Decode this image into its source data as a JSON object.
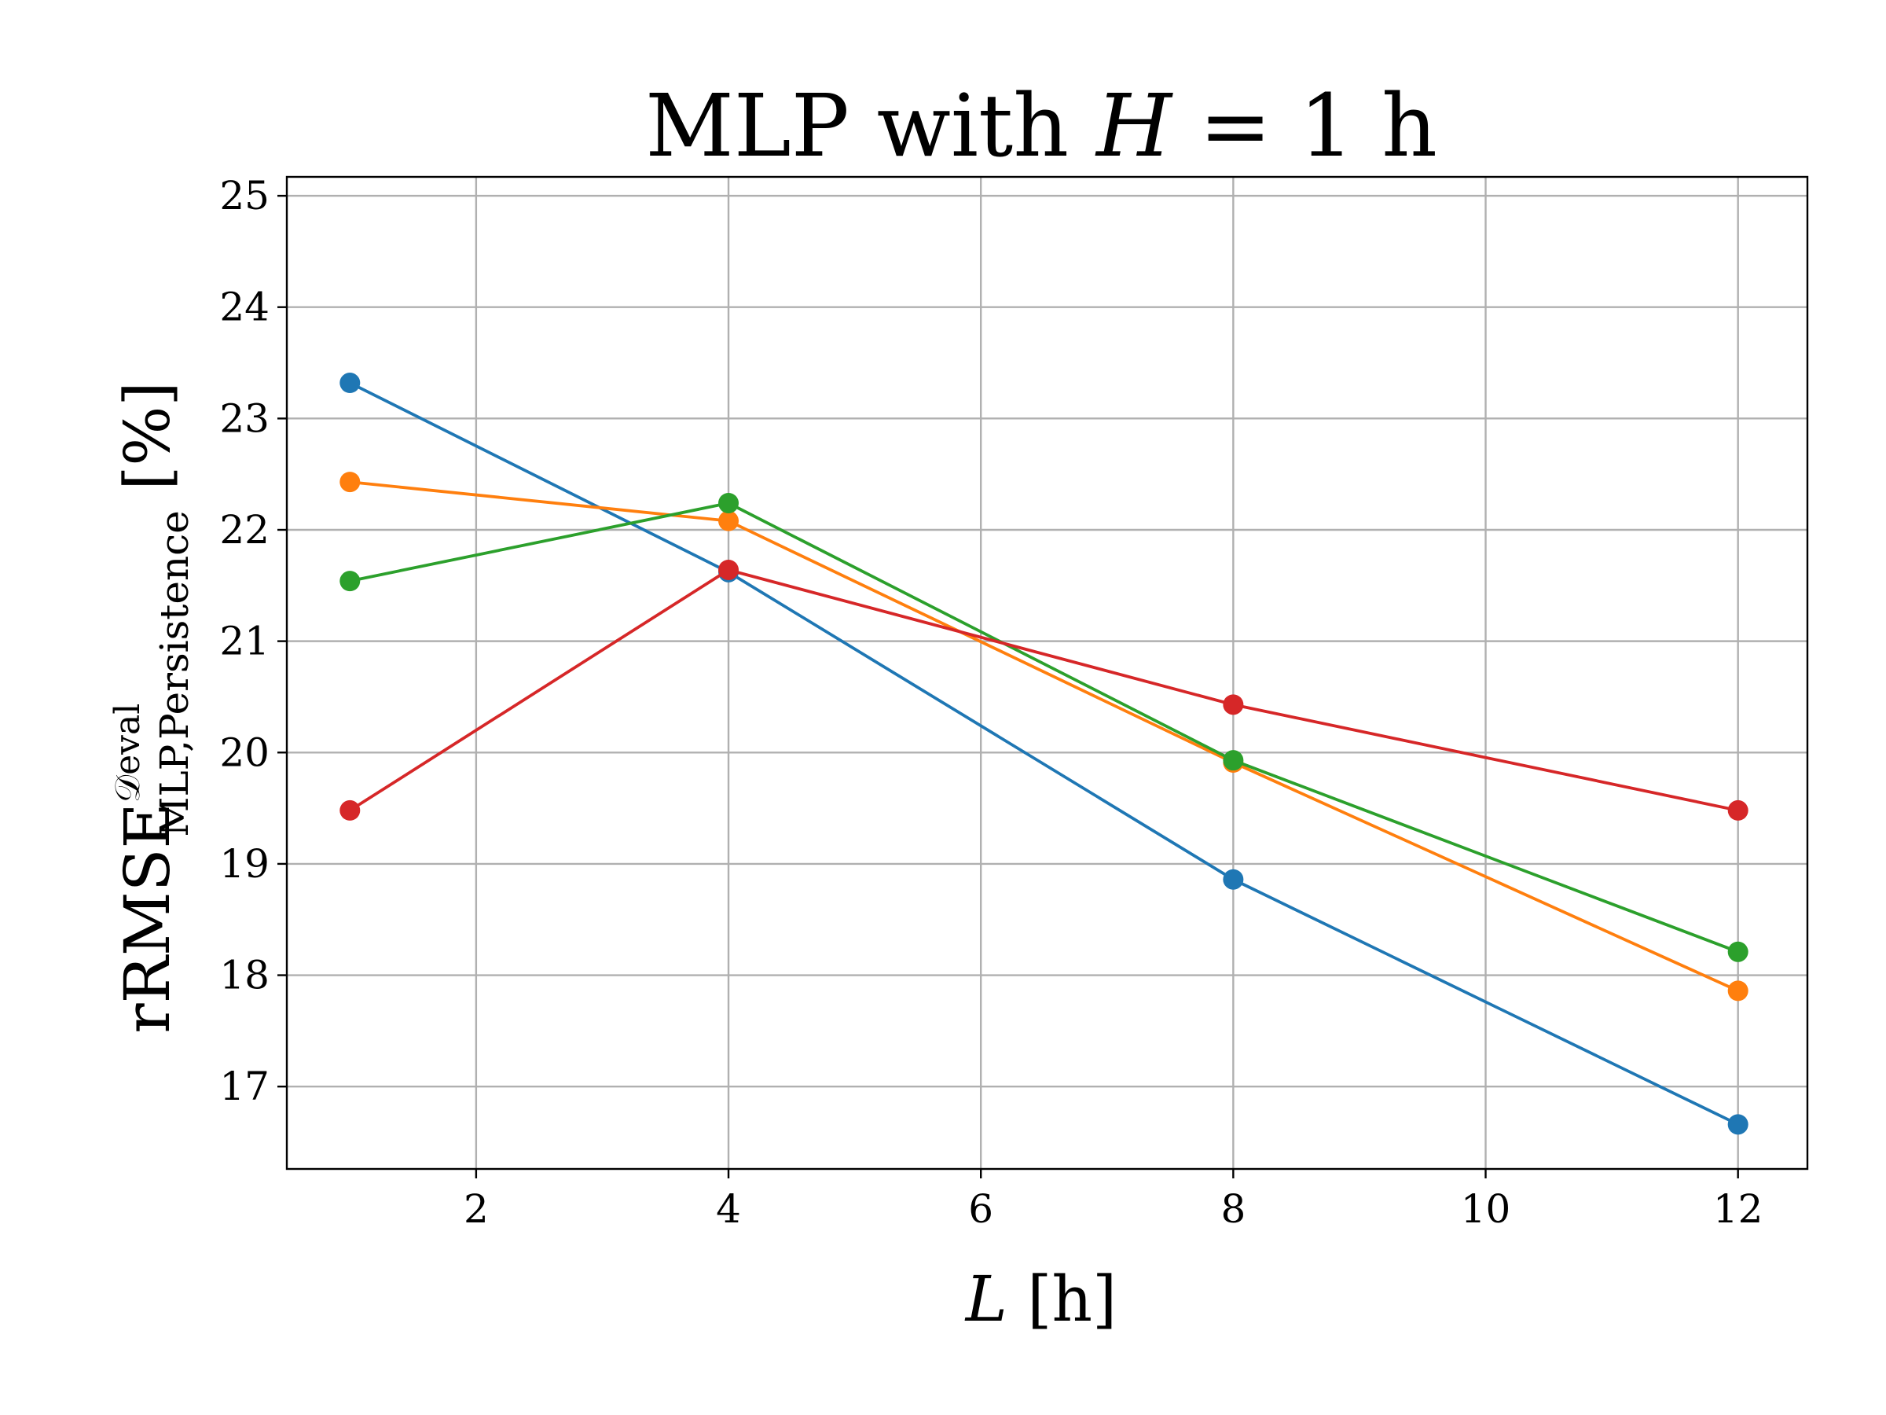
{
  "chart_data": {
    "type": "line",
    "title": {
      "prefix": "MLP with ",
      "symbol": "H",
      "suffix": " = 1 h"
    },
    "xlabel": {
      "symbol": "L",
      "unit": " [h]"
    },
    "ylabel": {
      "base": "rRMSE",
      "superscript": "𝒟eval",
      "subscript": "MLP,Persistence",
      "unit": " [%]"
    },
    "x": [
      1,
      4,
      8,
      12
    ],
    "xlim": [
      0.5,
      12.55
    ],
    "ylim": [
      16.26,
      25.17
    ],
    "xticks": [
      2,
      4,
      6,
      8,
      10,
      12
    ],
    "yticks": [
      17,
      18,
      19,
      20,
      21,
      22,
      23,
      24,
      25
    ],
    "grid": true,
    "legend": "none",
    "marker": "circle",
    "series": [
      {
        "color": "#1f77b4",
        "values": [
          23.32,
          21.62,
          18.86,
          16.66
        ]
      },
      {
        "color": "#ff7f0e",
        "values": [
          22.43,
          22.08,
          19.91,
          17.86
        ]
      },
      {
        "color": "#2ca02c",
        "values": [
          21.54,
          22.24,
          19.93,
          18.21
        ]
      },
      {
        "color": "#d62728",
        "values": [
          19.48,
          21.64,
          20.43,
          19.48
        ]
      }
    ]
  }
}
